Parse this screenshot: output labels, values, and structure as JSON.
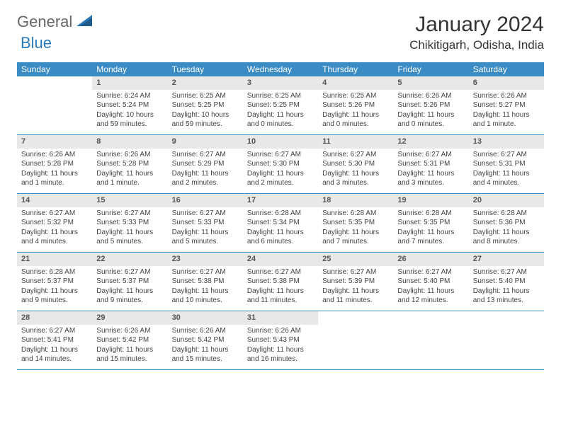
{
  "logo": {
    "part1": "General",
    "part2": "Blue"
  },
  "title": "January 2024",
  "location": "Chikitigarh, Odisha, India",
  "colors": {
    "header_bg": "#3b8bc4",
    "header_text": "#ffffff",
    "daynum_bg": "#e8e8e8",
    "row_border": "#3b8bc4",
    "logo_gray": "#666666",
    "logo_blue": "#2a7ab8"
  },
  "day_names": [
    "Sunday",
    "Monday",
    "Tuesday",
    "Wednesday",
    "Thursday",
    "Friday",
    "Saturday"
  ],
  "first_weekday": 1,
  "days": [
    {
      "n": 1,
      "sunrise": "6:24 AM",
      "sunset": "5:24 PM",
      "daylight": "10 hours and 59 minutes."
    },
    {
      "n": 2,
      "sunrise": "6:25 AM",
      "sunset": "5:25 PM",
      "daylight": "10 hours and 59 minutes."
    },
    {
      "n": 3,
      "sunrise": "6:25 AM",
      "sunset": "5:25 PM",
      "daylight": "11 hours and 0 minutes."
    },
    {
      "n": 4,
      "sunrise": "6:25 AM",
      "sunset": "5:26 PM",
      "daylight": "11 hours and 0 minutes."
    },
    {
      "n": 5,
      "sunrise": "6:26 AM",
      "sunset": "5:26 PM",
      "daylight": "11 hours and 0 minutes."
    },
    {
      "n": 6,
      "sunrise": "6:26 AM",
      "sunset": "5:27 PM",
      "daylight": "11 hours and 1 minute."
    },
    {
      "n": 7,
      "sunrise": "6:26 AM",
      "sunset": "5:28 PM",
      "daylight": "11 hours and 1 minute."
    },
    {
      "n": 8,
      "sunrise": "6:26 AM",
      "sunset": "5:28 PM",
      "daylight": "11 hours and 1 minute."
    },
    {
      "n": 9,
      "sunrise": "6:27 AM",
      "sunset": "5:29 PM",
      "daylight": "11 hours and 2 minutes."
    },
    {
      "n": 10,
      "sunrise": "6:27 AM",
      "sunset": "5:30 PM",
      "daylight": "11 hours and 2 minutes."
    },
    {
      "n": 11,
      "sunrise": "6:27 AM",
      "sunset": "5:30 PM",
      "daylight": "11 hours and 3 minutes."
    },
    {
      "n": 12,
      "sunrise": "6:27 AM",
      "sunset": "5:31 PM",
      "daylight": "11 hours and 3 minutes."
    },
    {
      "n": 13,
      "sunrise": "6:27 AM",
      "sunset": "5:31 PM",
      "daylight": "11 hours and 4 minutes."
    },
    {
      "n": 14,
      "sunrise": "6:27 AM",
      "sunset": "5:32 PM",
      "daylight": "11 hours and 4 minutes."
    },
    {
      "n": 15,
      "sunrise": "6:27 AM",
      "sunset": "5:33 PM",
      "daylight": "11 hours and 5 minutes."
    },
    {
      "n": 16,
      "sunrise": "6:27 AM",
      "sunset": "5:33 PM",
      "daylight": "11 hours and 5 minutes."
    },
    {
      "n": 17,
      "sunrise": "6:28 AM",
      "sunset": "5:34 PM",
      "daylight": "11 hours and 6 minutes."
    },
    {
      "n": 18,
      "sunrise": "6:28 AM",
      "sunset": "5:35 PM",
      "daylight": "11 hours and 7 minutes."
    },
    {
      "n": 19,
      "sunrise": "6:28 AM",
      "sunset": "5:35 PM",
      "daylight": "11 hours and 7 minutes."
    },
    {
      "n": 20,
      "sunrise": "6:28 AM",
      "sunset": "5:36 PM",
      "daylight": "11 hours and 8 minutes."
    },
    {
      "n": 21,
      "sunrise": "6:28 AM",
      "sunset": "5:37 PM",
      "daylight": "11 hours and 9 minutes."
    },
    {
      "n": 22,
      "sunrise": "6:27 AM",
      "sunset": "5:37 PM",
      "daylight": "11 hours and 9 minutes."
    },
    {
      "n": 23,
      "sunrise": "6:27 AM",
      "sunset": "5:38 PM",
      "daylight": "11 hours and 10 minutes."
    },
    {
      "n": 24,
      "sunrise": "6:27 AM",
      "sunset": "5:38 PM",
      "daylight": "11 hours and 11 minutes."
    },
    {
      "n": 25,
      "sunrise": "6:27 AM",
      "sunset": "5:39 PM",
      "daylight": "11 hours and 11 minutes."
    },
    {
      "n": 26,
      "sunrise": "6:27 AM",
      "sunset": "5:40 PM",
      "daylight": "11 hours and 12 minutes."
    },
    {
      "n": 27,
      "sunrise": "6:27 AM",
      "sunset": "5:40 PM",
      "daylight": "11 hours and 13 minutes."
    },
    {
      "n": 28,
      "sunrise": "6:27 AM",
      "sunset": "5:41 PM",
      "daylight": "11 hours and 14 minutes."
    },
    {
      "n": 29,
      "sunrise": "6:26 AM",
      "sunset": "5:42 PM",
      "daylight": "11 hours and 15 minutes."
    },
    {
      "n": 30,
      "sunrise": "6:26 AM",
      "sunset": "5:42 PM",
      "daylight": "11 hours and 15 minutes."
    },
    {
      "n": 31,
      "sunrise": "6:26 AM",
      "sunset": "5:43 PM",
      "daylight": "11 hours and 16 minutes."
    }
  ],
  "labels": {
    "sunrise_prefix": "Sunrise: ",
    "sunset_prefix": "Sunset: ",
    "daylight_prefix": "Daylight: "
  }
}
